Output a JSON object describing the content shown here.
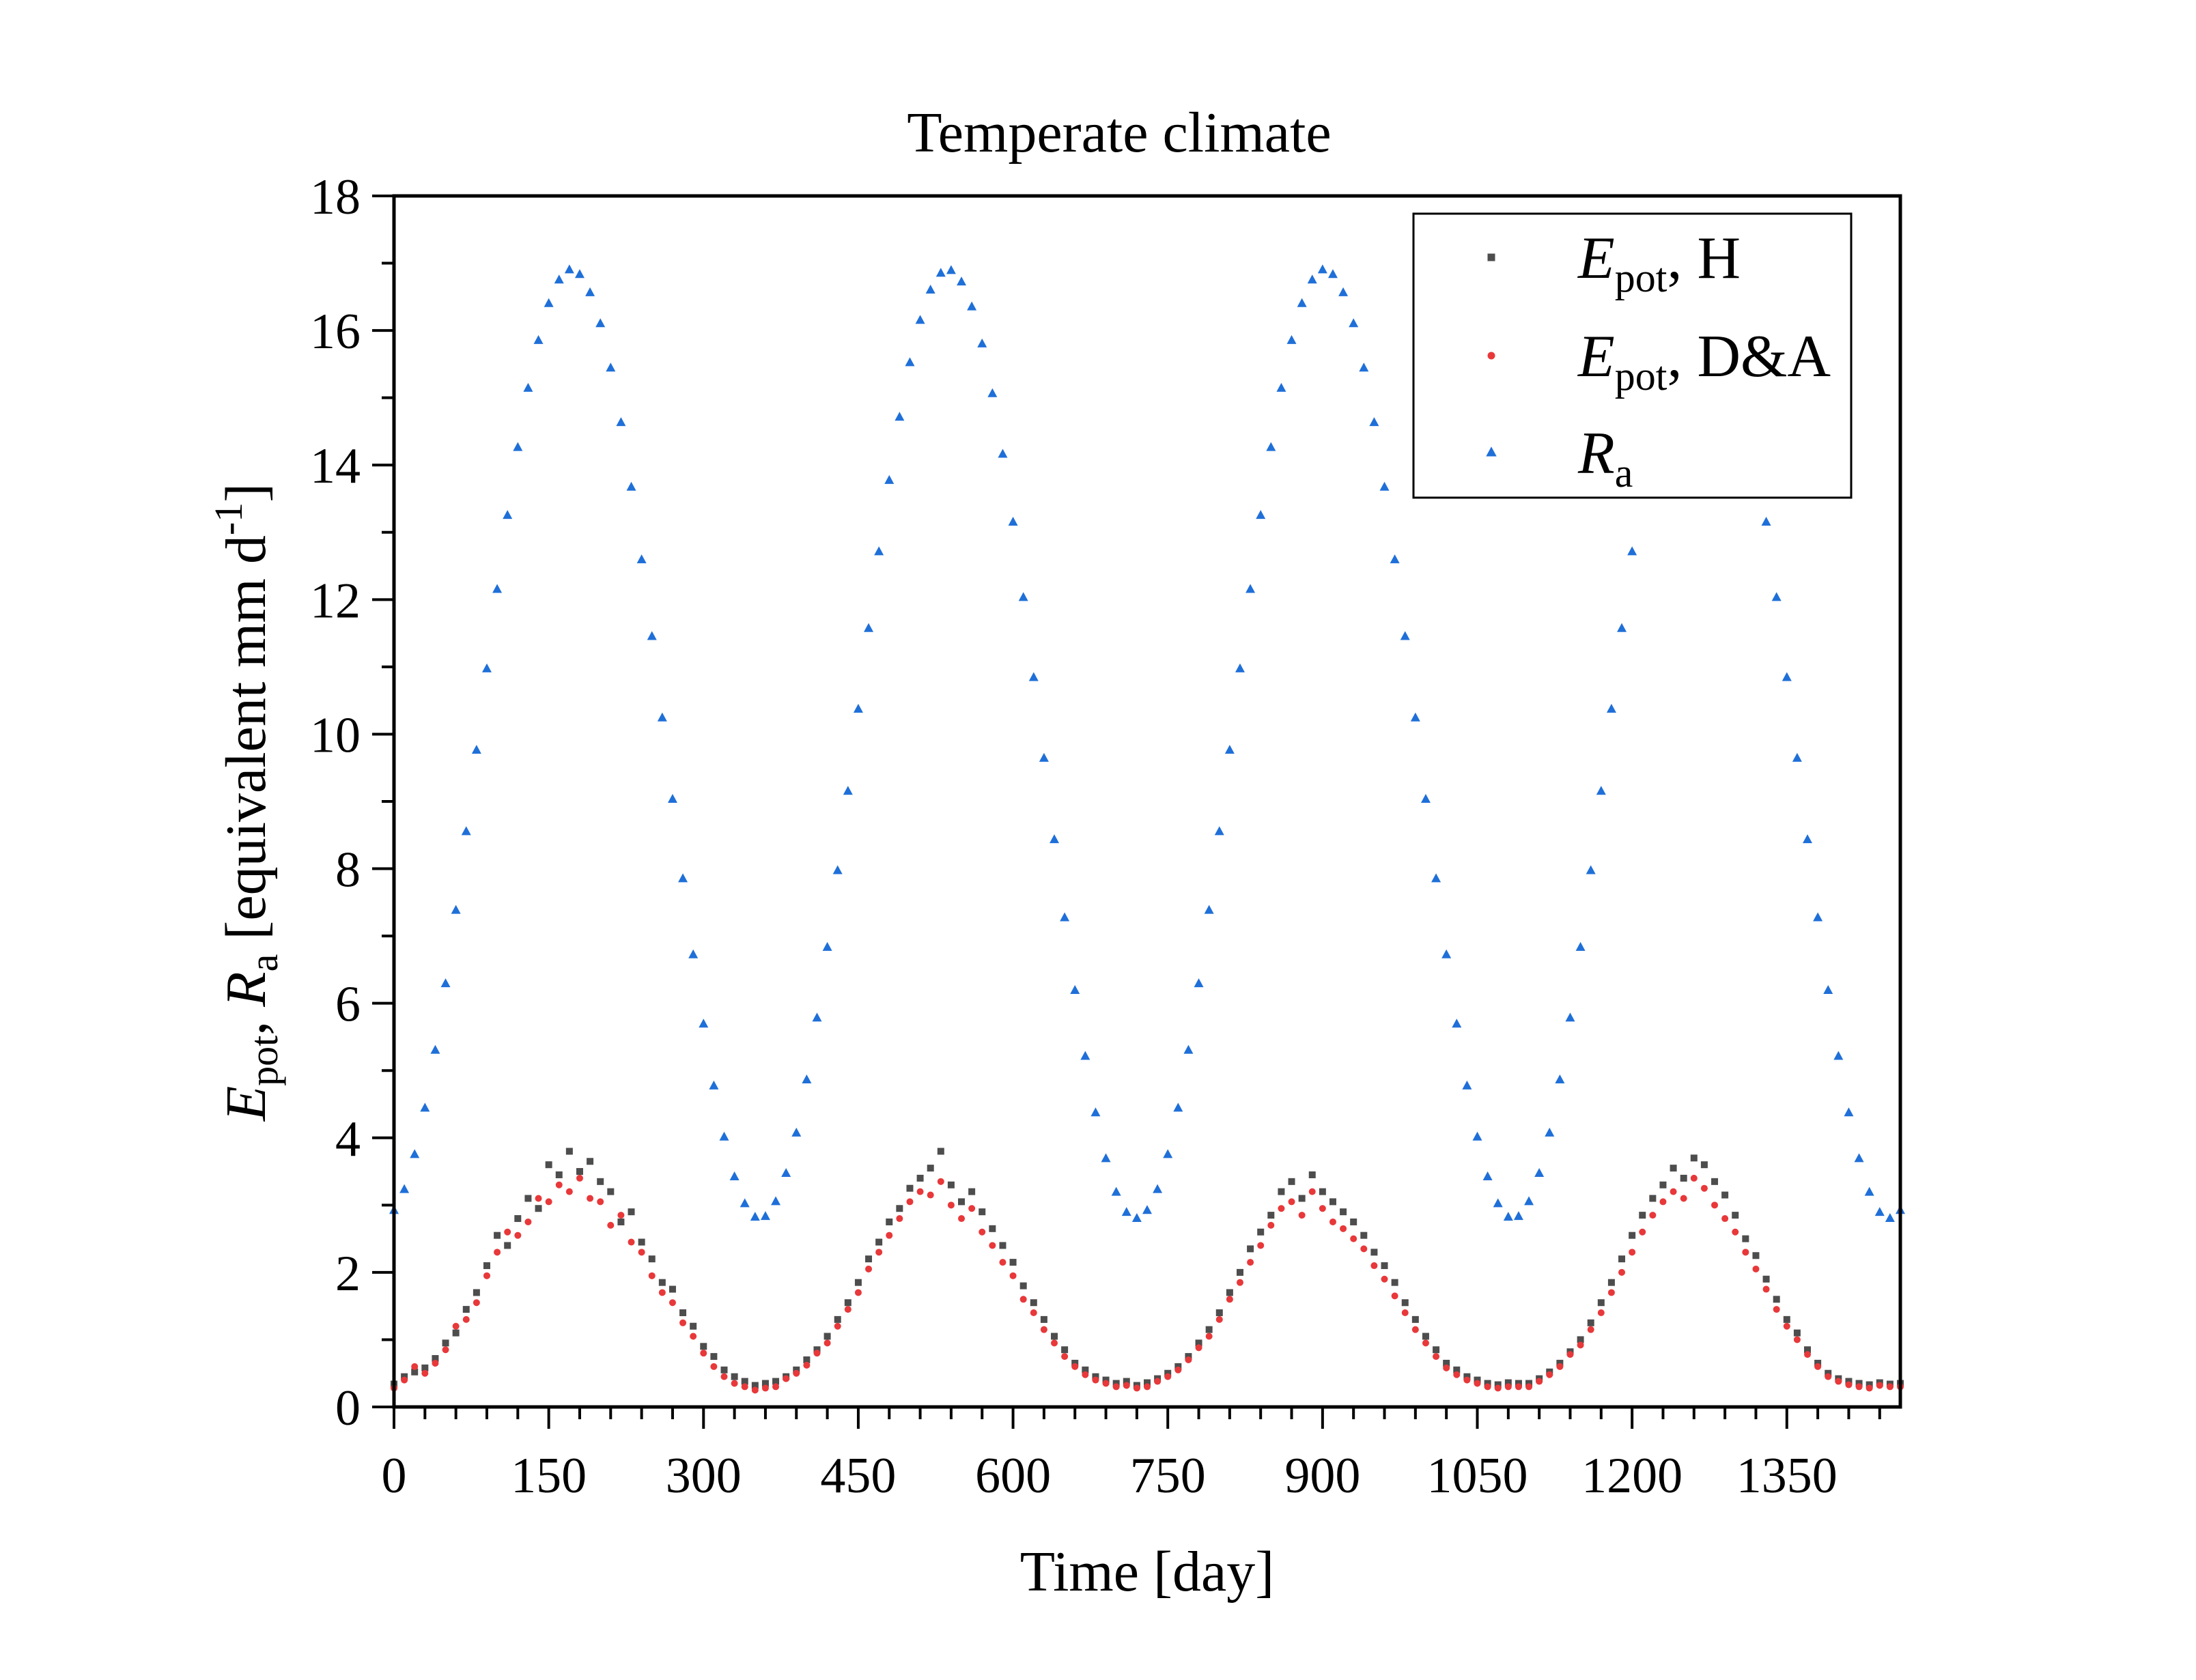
{
  "chart_data": {
    "type": "scatter",
    "title": "Temperate climate",
    "xlabel": "Time [day]",
    "ylabel": {
      "E": "E",
      "pot": "pot",
      "sep": ", ",
      "R": "R",
      "a": "a",
      "rest": " [equivalent mm d",
      "exp": "-1",
      "close": "]"
    },
    "xlim": [
      0,
      1460
    ],
    "ylim": [
      0,
      18
    ],
    "xticks": [
      0,
      150,
      300,
      450,
      600,
      750,
      900,
      1050,
      1200,
      1350
    ],
    "xminor_step": 30,
    "yticks": [
      0,
      2,
      4,
      6,
      8,
      10,
      12,
      14,
      16,
      18
    ],
    "yminor_step": 1,
    "grid": false,
    "legend_position": "top-right",
    "x_start": 0,
    "x_step": 10,
    "series": [
      {
        "name": "Epot, H",
        "legend": {
          "E": "E",
          "sub": "pot",
          "rest": ", H"
        },
        "marker": "square",
        "color": "#4d4d4d",
        "values": [
          0.34,
          0.45,
          0.52,
          0.58,
          0.72,
          0.95,
          1.1,
          1.45,
          1.7,
          2.1,
          2.55,
          2.4,
          2.8,
          3.1,
          2.95,
          3.6,
          3.45,
          3.8,
          3.5,
          3.65,
          3.35,
          3.2,
          2.75,
          2.9,
          2.45,
          2.2,
          1.85,
          1.75,
          1.4,
          1.2,
          0.9,
          0.75,
          0.55,
          0.45,
          0.38,
          0.32,
          0.35,
          0.38,
          0.45,
          0.55,
          0.7,
          0.85,
          1.05,
          1.3,
          1.55,
          1.85,
          2.2,
          2.45,
          2.75,
          2.95,
          3.25,
          3.4,
          3.55,
          3.8,
          3.3,
          3.05,
          3.2,
          2.9,
          2.65,
          2.4,
          2.15,
          1.8,
          1.55,
          1.3,
          1.05,
          0.85,
          0.65,
          0.55,
          0.45,
          0.4,
          0.35,
          0.38,
          0.32,
          0.36,
          0.42,
          0.5,
          0.6,
          0.75,
          0.95,
          1.15,
          1.4,
          1.7,
          2.0,
          2.35,
          2.6,
          2.85,
          3.2,
          3.35,
          3.1,
          3.45,
          3.2,
          3.05,
          2.9,
          2.75,
          2.55,
          2.3,
          2.1,
          1.85,
          1.55,
          1.3,
          1.05,
          0.85,
          0.65,
          0.55,
          0.45,
          0.4,
          0.35,
          0.33,
          0.36,
          0.35,
          0.35,
          0.42,
          0.52,
          0.65,
          0.82,
          1.0,
          1.25,
          1.55,
          1.85,
          2.2,
          2.55,
          2.85,
          3.1,
          3.3,
          3.55,
          3.4,
          3.7,
          3.6,
          3.35,
          3.15,
          2.85,
          2.5,
          2.25,
          1.9,
          1.6,
          1.3,
          1.1,
          0.85,
          0.65,
          0.5,
          0.42,
          0.38,
          0.35,
          0.33,
          0.36,
          0.34,
          0.35
        ]
      },
      {
        "name": "Epot, D&A",
        "legend": {
          "E": "E",
          "sub": "pot",
          "rest": ", D&A"
        },
        "marker": "circle",
        "color": "#e8383a",
        "values": [
          0.28,
          0.4,
          0.6,
          0.5,
          0.65,
          0.85,
          1.2,
          1.3,
          1.55,
          1.95,
          2.3,
          2.6,
          2.55,
          2.75,
          3.1,
          3.05,
          3.3,
          3.2,
          3.4,
          3.1,
          3.05,
          2.7,
          2.85,
          2.45,
          2.3,
          1.95,
          1.7,
          1.55,
          1.25,
          1.05,
          0.8,
          0.6,
          0.45,
          0.35,
          0.3,
          0.25,
          0.28,
          0.3,
          0.42,
          0.5,
          0.62,
          0.8,
          0.95,
          1.2,
          1.45,
          1.7,
          2.05,
          2.3,
          2.55,
          2.8,
          3.05,
          3.2,
          3.15,
          3.35,
          3.0,
          2.8,
          2.95,
          2.6,
          2.4,
          2.15,
          1.95,
          1.6,
          1.4,
          1.15,
          0.95,
          0.75,
          0.6,
          0.48,
          0.4,
          0.35,
          0.3,
          0.32,
          0.28,
          0.3,
          0.38,
          0.45,
          0.55,
          0.7,
          0.88,
          1.05,
          1.3,
          1.6,
          1.85,
          2.15,
          2.4,
          2.7,
          2.95,
          3.05,
          2.85,
          3.2,
          2.95,
          2.75,
          2.65,
          2.5,
          2.35,
          2.1,
          1.9,
          1.65,
          1.4,
          1.15,
          0.95,
          0.75,
          0.58,
          0.48,
          0.4,
          0.35,
          0.3,
          0.28,
          0.3,
          0.3,
          0.3,
          0.38,
          0.48,
          0.6,
          0.78,
          0.92,
          1.15,
          1.4,
          1.7,
          2.0,
          2.3,
          2.6,
          2.85,
          3.05,
          3.2,
          3.1,
          3.4,
          3.25,
          3.0,
          2.8,
          2.6,
          2.3,
          2.05,
          1.75,
          1.45,
          1.2,
          1.0,
          0.78,
          0.6,
          0.45,
          0.38,
          0.33,
          0.3,
          0.28,
          0.32,
          0.3,
          0.3
        ]
      },
      {
        "name": "Ra",
        "legend": {
          "E": "R",
          "sub": "a",
          "rest": ""
        },
        "marker": "triangle",
        "color": "#1f6fd8",
        "values": [
          2.92,
          3.23,
          3.75,
          4.44,
          5.3,
          6.29,
          7.38,
          8.55,
          9.76,
          10.97,
          12.15,
          13.25,
          14.26,
          15.14,
          15.85,
          16.4,
          16.75,
          16.9,
          16.83,
          16.56,
          16.1,
          15.44,
          14.63,
          13.67,
          12.59,
          11.45,
          10.24,
          9.03,
          7.85,
          6.72,
          5.69,
          4.77,
          4.01,
          3.42,
          3.02,
          2.82,
          2.83,
          3.05,
          3.47,
          4.07,
          4.86,
          5.78,
          6.83,
          7.97,
          9.15,
          10.37,
          11.57,
          12.71,
          13.77,
          14.71,
          15.52,
          16.15,
          16.6,
          16.85,
          16.89,
          16.72,
          16.35,
          15.8,
          15.06,
          14.16,
          13.15,
          12.03,
          10.84,
          9.64,
          8.43,
          7.27,
          6.19,
          5.21,
          4.37,
          3.69,
          3.19,
          2.89,
          2.8,
          2.92,
          3.23,
          3.75,
          4.44,
          5.3,
          6.29,
          7.38,
          8.55,
          9.76,
          10.97,
          12.15,
          13.25,
          14.26,
          15.14,
          15.85,
          16.4,
          16.75,
          16.9,
          16.83,
          16.56,
          16.1,
          15.44,
          14.63,
          13.67,
          12.59,
          11.45,
          10.24,
          9.03,
          7.85,
          6.72,
          5.69,
          4.77,
          4.01,
          3.42,
          3.02,
          2.82,
          2.83,
          3.05,
          3.47,
          4.07,
          4.86,
          5.78,
          6.83,
          7.97,
          9.15,
          10.37,
          11.57,
          12.71,
          13.77,
          14.71,
          15.52,
          16.15,
          16.6,
          16.85,
          16.89,
          16.72,
          16.35,
          15.8,
          15.06,
          14.16,
          13.15,
          12.03,
          10.84,
          9.64,
          8.43,
          7.27,
          6.19,
          5.21,
          4.37,
          3.69,
          3.19,
          2.89,
          2.8,
          2.92
        ]
      }
    ]
  }
}
